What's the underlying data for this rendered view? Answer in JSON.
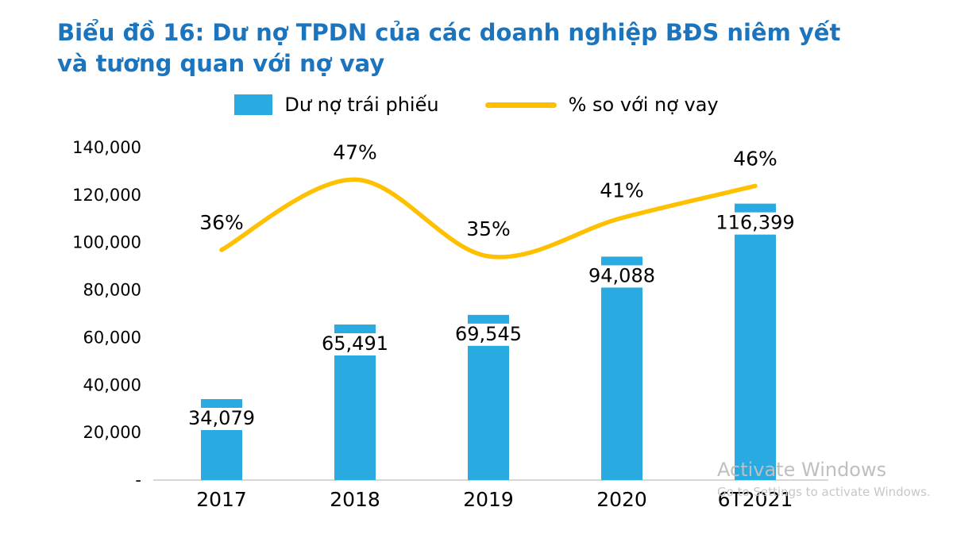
{
  "title": "Biểu đồ 16: Dư nợ TPDN của các doanh nghiệp BĐS niêm yết và tương quan với nợ vay",
  "colors": {
    "title": "#1B74BC",
    "bar": "#29ABE2",
    "line": "#FFC000",
    "axis": "#C9C9C9"
  },
  "watermark": {
    "line1": "Activate Windows",
    "line2": "Go to Settings to activate Windows."
  },
  "chart_data": {
    "type": "bar",
    "subtype": "bar+line combo",
    "categories": [
      "2017",
      "2018",
      "2019",
      "2020",
      "6T2021"
    ],
    "series": [
      {
        "name": "Dư nợ trái phiếu",
        "type": "bar",
        "axis": "primary",
        "values": [
          34079,
          65491,
          69545,
          94088,
          116399
        ],
        "labels": [
          "34,079",
          "65,491",
          "69,545",
          "94,088",
          "116,399"
        ]
      },
      {
        "name": "% so với nợ vay",
        "type": "line",
        "axis": "secondary",
        "values": [
          36,
          47,
          35,
          41,
          46
        ],
        "labels": [
          "36%",
          "47%",
          "35%",
          "41%",
          "46%"
        ]
      }
    ],
    "y_axis": {
      "min": 0,
      "max": 140000,
      "step": 20000,
      "tick_labels": [
        "140,000",
        "120,000",
        "100,000",
        "80,000",
        "60,000",
        "40,000",
        "20,000",
        "-"
      ]
    },
    "secondary_axis": {
      "min": 0,
      "max": 52,
      "visible": false
    },
    "legend_position": "top",
    "grid": false,
    "line_smooth": true
  }
}
